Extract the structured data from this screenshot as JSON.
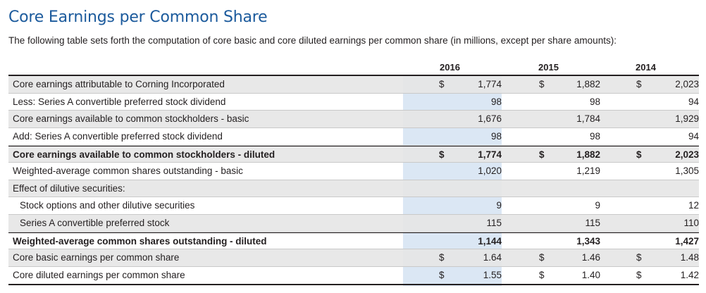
{
  "title": "Core Earnings per Common Share",
  "subtitle": "The following table sets forth the computation of core basic and core diluted earnings per common share (in millions, except per share amounts):",
  "years": [
    "2016",
    "2015",
    "2014"
  ],
  "rows": [
    {
      "label": "Core earnings attributable to Corning Incorporated",
      "dollar": true,
      "values": [
        "1,774",
        "1,882",
        "2,023"
      ],
      "bold": false,
      "indent": false,
      "shade": true
    },
    {
      "label": "Less: Series A convertible preferred stock dividend",
      "dollar": false,
      "values": [
        "98",
        "98",
        "94"
      ],
      "bold": false,
      "indent": false,
      "shade": false
    },
    {
      "label": "Core earnings available to common stockholders - basic",
      "dollar": false,
      "values": [
        "1,676",
        "1,784",
        "1,929"
      ],
      "bold": false,
      "indent": false,
      "shade": true
    },
    {
      "label": "Add: Series A convertible preferred stock dividend",
      "dollar": false,
      "values": [
        "98",
        "98",
        "94"
      ],
      "bold": false,
      "indent": false,
      "shade": false
    },
    {
      "label": "Core earnings available to common stockholders - diluted",
      "dollar": true,
      "values": [
        "1,774",
        "1,882",
        "2,023"
      ],
      "bold": true,
      "indent": false,
      "shade": true
    },
    {
      "label": "Weighted-average common shares outstanding - basic",
      "dollar": false,
      "values": [
        "1,020",
        "1,219",
        "1,305"
      ],
      "bold": false,
      "indent": false,
      "shade": false
    },
    {
      "label": "Effect of dilutive securities:",
      "dollar": false,
      "values": [
        "",
        "",
        ""
      ],
      "bold": false,
      "indent": false,
      "shade": true
    },
    {
      "label": "Stock options and other dilutive securities",
      "dollar": false,
      "values": [
        "9",
        "9",
        "12"
      ],
      "bold": false,
      "indent": true,
      "shade": false
    },
    {
      "label": "Series A convertible preferred stock",
      "dollar": false,
      "values": [
        "115",
        "115",
        "110"
      ],
      "bold": false,
      "indent": true,
      "shade": true
    },
    {
      "label": "Weighted-average common shares outstanding - diluted",
      "dollar": false,
      "values": [
        "1,144",
        "1,343",
        "1,427"
      ],
      "bold": true,
      "indent": false,
      "shade": false
    },
    {
      "label": "Core basic earnings per common share",
      "dollar": true,
      "values": [
        "1.64",
        "1.46",
        "1.48"
      ],
      "bold": false,
      "indent": false,
      "shade": true
    },
    {
      "label": "Core diluted earnings per common share",
      "dollar": true,
      "values": [
        "1.55",
        "1.40",
        "1.42"
      ],
      "bold": false,
      "indent": false,
      "shade": false
    }
  ],
  "currency_symbol": "$",
  "colors": {
    "title": "#1b5a9c",
    "highlight": "#dbe7f4",
    "row_shade": "#e6e6e6"
  }
}
